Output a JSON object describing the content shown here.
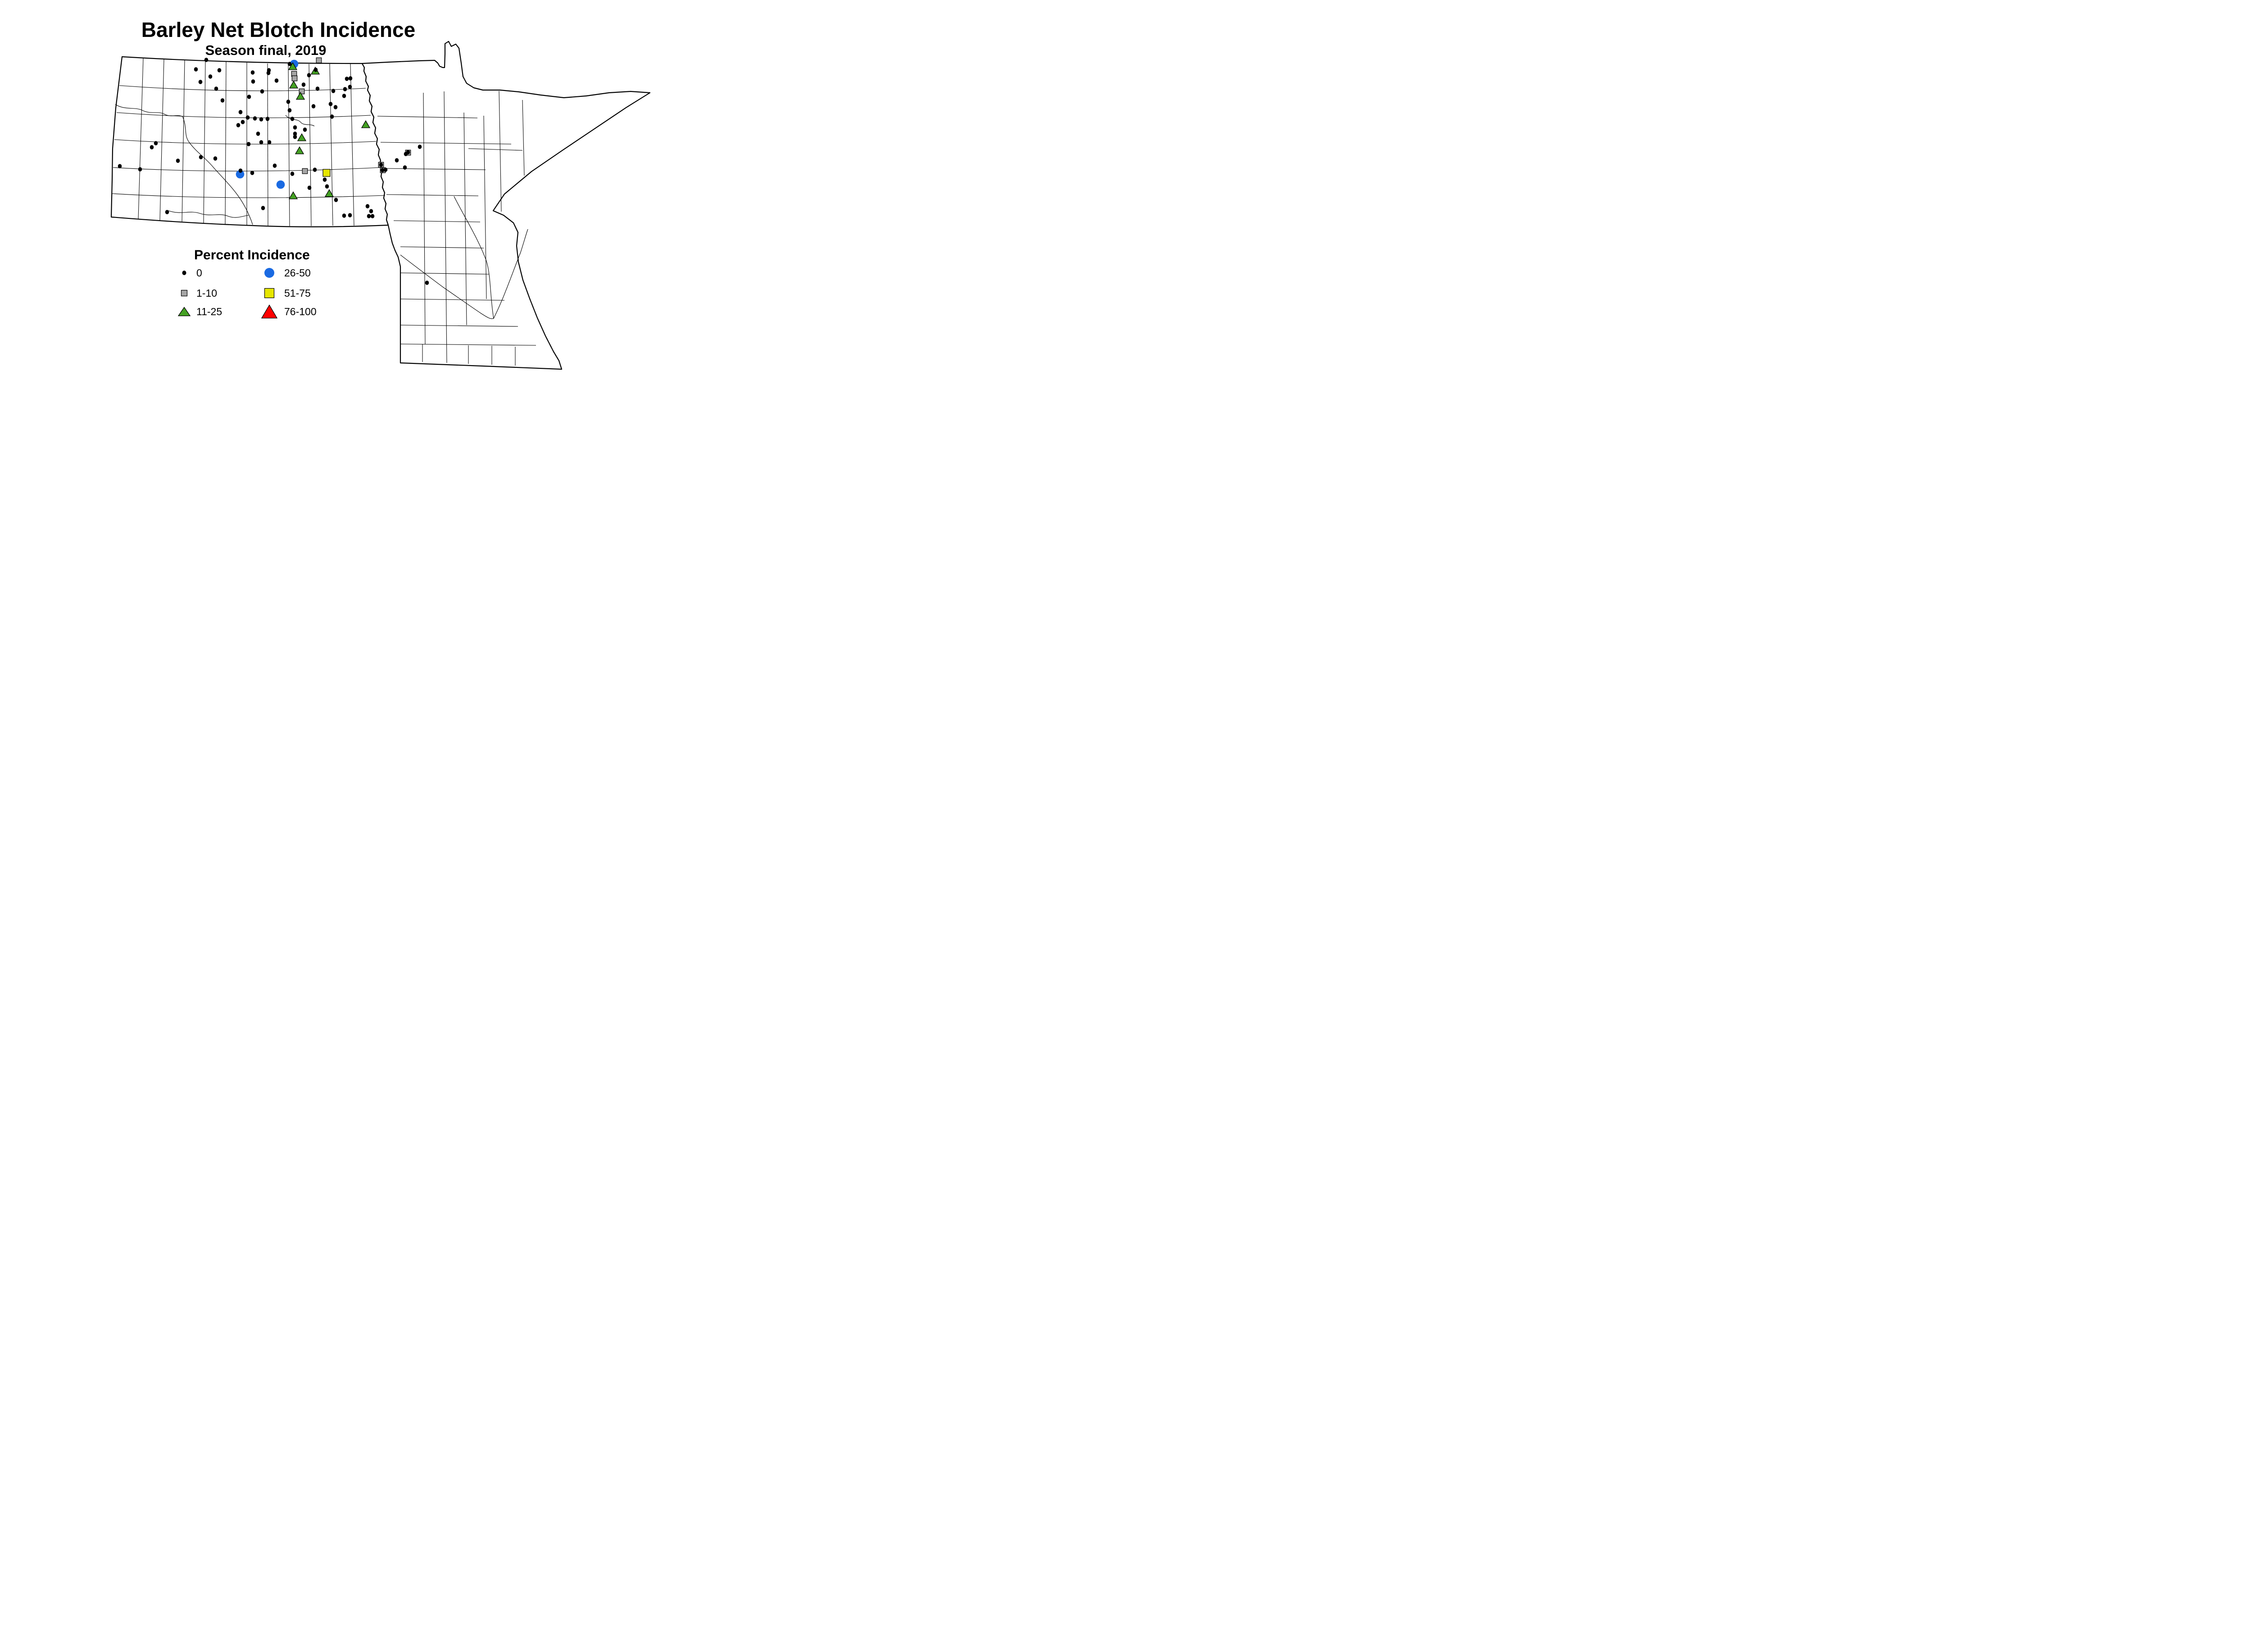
{
  "title": "Barley Net Blotch Incidence",
  "subtitle": "Season final, 2019",
  "legend": {
    "title": "Percent Incidence",
    "items": [
      {
        "label": "0",
        "marker": "dot",
        "color": "#000000"
      },
      {
        "label": "1-10",
        "marker": "square",
        "color": "#a6a6a6"
      },
      {
        "label": "11-25",
        "marker": "triangle",
        "color": "#44a123"
      },
      {
        "label": "26-50",
        "marker": "circle",
        "color": "#1a6ae2"
      },
      {
        "label": "51-75",
        "marker": "square",
        "color": "#e6e600"
      },
      {
        "label": "76-100",
        "marker": "triangle",
        "color": "#ff0000"
      }
    ]
  },
  "map_points": {
    "0": [
      [
        458,
        133
      ],
      [
        435,
        154
      ],
      [
        487,
        156
      ],
      [
        467,
        170
      ],
      [
        445,
        182
      ],
      [
        480,
        197
      ],
      [
        561,
        161
      ],
      [
        562,
        181
      ],
      [
        553,
        215
      ],
      [
        494,
        223
      ],
      [
        597,
        156
      ],
      [
        596,
        162
      ],
      [
        614,
        179
      ],
      [
        582,
        203
      ],
      [
        534,
        249
      ],
      [
        550,
        261
      ],
      [
        566,
        263
      ],
      [
        580,
        265
      ],
      [
        594,
        264
      ],
      [
        539,
        271
      ],
      [
        529,
        278
      ],
      [
        573,
        297
      ],
      [
        580,
        316
      ],
      [
        598,
        316
      ],
      [
        552,
        320
      ],
      [
        640,
        226
      ],
      [
        643,
        245
      ],
      [
        649,
        264
      ],
      [
        696,
        236
      ],
      [
        655,
        283
      ],
      [
        677,
        288
      ],
      [
        655,
        297
      ],
      [
        655,
        304
      ],
      [
        643,
        142
      ],
      [
        701,
        155
      ],
      [
        686,
        167
      ],
      [
        674,
        188
      ],
      [
        705,
        197
      ],
      [
        740,
        202
      ],
      [
        770,
        175
      ],
      [
        778,
        174
      ],
      [
        777,
        193
      ],
      [
        766,
        198
      ],
      [
        764,
        213
      ],
      [
        734,
        231
      ],
      [
        745,
        238
      ],
      [
        737,
        259
      ],
      [
        346,
        318
      ],
      [
        337,
        327
      ],
      [
        266,
        369
      ],
      [
        311,
        376
      ],
      [
        395,
        357
      ],
      [
        446,
        349
      ],
      [
        478,
        352
      ],
      [
        534,
        379
      ],
      [
        371,
        471
      ],
      [
        560,
        384
      ],
      [
        610,
        368
      ],
      [
        649,
        386
      ],
      [
        699,
        377
      ],
      [
        721,
        399
      ],
      [
        687,
        417
      ],
      [
        726,
        414
      ],
      [
        584,
        462
      ],
      [
        746,
        444
      ],
      [
        764,
        479
      ],
      [
        777,
        478
      ],
      [
        816,
        458
      ],
      [
        824,
        469
      ],
      [
        819,
        480
      ],
      [
        827,
        480
      ],
      [
        932,
        326
      ],
      [
        881,
        356
      ],
      [
        899,
        372
      ],
      [
        906,
        338
      ],
      [
        901,
        342
      ],
      [
        846,
        366
      ],
      [
        849,
        378
      ],
      [
        856,
        377
      ],
      [
        948,
        628
      ]
    ],
    "1-10": [
      [
        708,
        134
      ],
      [
        653,
        164
      ],
      [
        654,
        174
      ],
      [
        670,
        203
      ],
      [
        677,
        380
      ],
      [
        906,
        339
      ],
      [
        846,
        366
      ],
      [
        850,
        378
      ]
    ],
    "11-25": [
      [
        650,
        147
      ],
      [
        700,
        157
      ],
      [
        652,
        188
      ],
      [
        667,
        213
      ],
      [
        812,
        276
      ],
      [
        670,
        305
      ],
      [
        665,
        334
      ],
      [
        651,
        434
      ],
      [
        731,
        429
      ]
    ],
    "26-50": [
      [
        653,
        142
      ],
      [
        533,
        387
      ],
      [
        623,
        410
      ]
    ],
    "51-75": [
      [
        725,
        384
      ]
    ],
    "76-100": []
  }
}
